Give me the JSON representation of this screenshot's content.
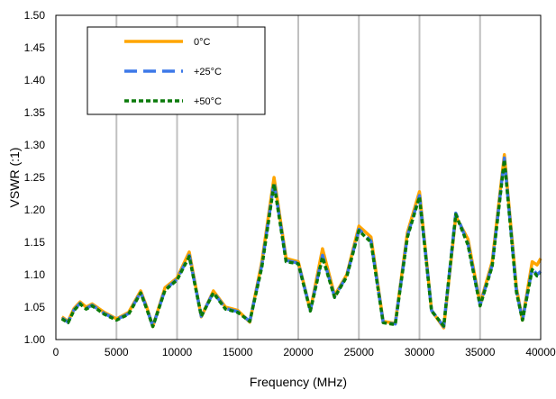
{
  "chart_data": {
    "type": "line",
    "title": "",
    "xlabel": "Frequency (MHz)",
    "ylabel": "VSWR (:1)",
    "xlim": [
      0,
      40000
    ],
    "ylim": [
      1.0,
      1.5
    ],
    "x_ticks": [
      0,
      5000,
      10000,
      15000,
      20000,
      25000,
      30000,
      35000,
      40000
    ],
    "y_ticks": [
      1.0,
      1.05,
      1.1,
      1.15,
      1.2,
      1.25,
      1.3,
      1.35,
      1.4,
      1.45,
      1.5
    ],
    "x_tick_labels": [
      "0",
      "5000",
      "10000",
      "15000",
      "20000",
      "25000",
      "30000",
      "35000",
      "40000"
    ],
    "y_tick_labels": [
      "1.00",
      "1.05",
      "1.10",
      "1.15",
      "1.20",
      "1.25",
      "1.30",
      "1.35",
      "1.40",
      "1.45",
      "1.50"
    ],
    "grid": "vertical",
    "legend_position": "top-left",
    "series": [
      {
        "name": "0°C",
        "color": "#FFA500",
        "style": "solid",
        "points": [
          [
            500,
            1.035
          ],
          [
            1000,
            1.028
          ],
          [
            1500,
            1.048
          ],
          [
            2000,
            1.058
          ],
          [
            2500,
            1.05
          ],
          [
            3000,
            1.055
          ],
          [
            4000,
            1.042
          ],
          [
            5000,
            1.032
          ],
          [
            6000,
            1.042
          ],
          [
            7000,
            1.075
          ],
          [
            7500,
            1.05
          ],
          [
            8000,
            1.02
          ],
          [
            9000,
            1.08
          ],
          [
            10000,
            1.095
          ],
          [
            11000,
            1.135
          ],
          [
            12000,
            1.035
          ],
          [
            13000,
            1.075
          ],
          [
            14000,
            1.05
          ],
          [
            15000,
            1.045
          ],
          [
            16000,
            1.027
          ],
          [
            17000,
            1.12
          ],
          [
            18000,
            1.25
          ],
          [
            19000,
            1.125
          ],
          [
            20000,
            1.12
          ],
          [
            21000,
            1.045
          ],
          [
            22000,
            1.14
          ],
          [
            23000,
            1.068
          ],
          [
            24000,
            1.1
          ],
          [
            25000,
            1.175
          ],
          [
            26000,
            1.158
          ],
          [
            27000,
            1.028
          ],
          [
            28000,
            1.025
          ],
          [
            29000,
            1.165
          ],
          [
            30000,
            1.228
          ],
          [
            31000,
            1.045
          ],
          [
            32000,
            1.018
          ],
          [
            33000,
            1.19
          ],
          [
            34000,
            1.155
          ],
          [
            35000,
            1.055
          ],
          [
            36000,
            1.12
          ],
          [
            37000,
            1.285
          ],
          [
            38000,
            1.08
          ],
          [
            38500,
            1.03
          ],
          [
            39300,
            1.12
          ],
          [
            39700,
            1.115
          ],
          [
            40000,
            1.125
          ]
        ]
      },
      {
        "name": "+25°C",
        "color": "#3C78E8",
        "style": "dashed",
        "points": [
          [
            500,
            1.033
          ],
          [
            1000,
            1.027
          ],
          [
            1500,
            1.046
          ],
          [
            2000,
            1.056
          ],
          [
            2500,
            1.048
          ],
          [
            3000,
            1.053
          ],
          [
            4000,
            1.04
          ],
          [
            5000,
            1.031
          ],
          [
            6000,
            1.04
          ],
          [
            7000,
            1.073
          ],
          [
            7500,
            1.048
          ],
          [
            8000,
            1.02
          ],
          [
            9000,
            1.077
          ],
          [
            10000,
            1.093
          ],
          [
            11000,
            1.13
          ],
          [
            12000,
            1.036
          ],
          [
            13000,
            1.073
          ],
          [
            14000,
            1.048
          ],
          [
            15000,
            1.043
          ],
          [
            16000,
            1.028
          ],
          [
            17000,
            1.115
          ],
          [
            18000,
            1.243
          ],
          [
            19000,
            1.122
          ],
          [
            20000,
            1.118
          ],
          [
            21000,
            1.045
          ],
          [
            22000,
            1.13
          ],
          [
            23000,
            1.066
          ],
          [
            24000,
            1.098
          ],
          [
            25000,
            1.17
          ],
          [
            26000,
            1.152
          ],
          [
            27000,
            1.027
          ],
          [
            28000,
            1.024
          ],
          [
            29000,
            1.16
          ],
          [
            30000,
            1.222
          ],
          [
            31000,
            1.045
          ],
          [
            32000,
            1.02
          ],
          [
            33000,
            1.195
          ],
          [
            34000,
            1.148
          ],
          [
            35000,
            1.053
          ],
          [
            36000,
            1.115
          ],
          [
            37000,
            1.28
          ],
          [
            38000,
            1.075
          ],
          [
            38500,
            1.03
          ],
          [
            39300,
            1.11
          ],
          [
            39700,
            1.1
          ],
          [
            40000,
            1.105
          ]
        ]
      },
      {
        "name": "+50°C",
        "color": "#0A7A0A",
        "style": "dotted",
        "points": [
          [
            500,
            1.032
          ],
          [
            1000,
            1.026
          ],
          [
            1500,
            1.045
          ],
          [
            2000,
            1.055
          ],
          [
            2500,
            1.047
          ],
          [
            3000,
            1.052
          ],
          [
            4000,
            1.039
          ],
          [
            5000,
            1.03
          ],
          [
            6000,
            1.039
          ],
          [
            7000,
            1.072
          ],
          [
            7500,
            1.047
          ],
          [
            8000,
            1.02
          ],
          [
            9000,
            1.076
          ],
          [
            10000,
            1.092
          ],
          [
            11000,
            1.128
          ],
          [
            12000,
            1.036
          ],
          [
            13000,
            1.072
          ],
          [
            14000,
            1.047
          ],
          [
            15000,
            1.042
          ],
          [
            16000,
            1.028
          ],
          [
            17000,
            1.112
          ],
          [
            18000,
            1.24
          ],
          [
            19000,
            1.12
          ],
          [
            20000,
            1.117
          ],
          [
            21000,
            1.044
          ],
          [
            22000,
            1.127
          ],
          [
            23000,
            1.065
          ],
          [
            24000,
            1.097
          ],
          [
            25000,
            1.168
          ],
          [
            26000,
            1.15
          ],
          [
            27000,
            1.026
          ],
          [
            28000,
            1.023
          ],
          [
            29000,
            1.158
          ],
          [
            30000,
            1.22
          ],
          [
            31000,
            1.044
          ],
          [
            32000,
            1.021
          ],
          [
            33000,
            1.193
          ],
          [
            34000,
            1.146
          ],
          [
            35000,
            1.052
          ],
          [
            36000,
            1.113
          ],
          [
            37000,
            1.277
          ],
          [
            38000,
            1.073
          ],
          [
            38500,
            1.03
          ],
          [
            39300,
            1.108
          ],
          [
            39700,
            1.098
          ],
          [
            40000,
            1.1
          ]
        ]
      }
    ]
  }
}
